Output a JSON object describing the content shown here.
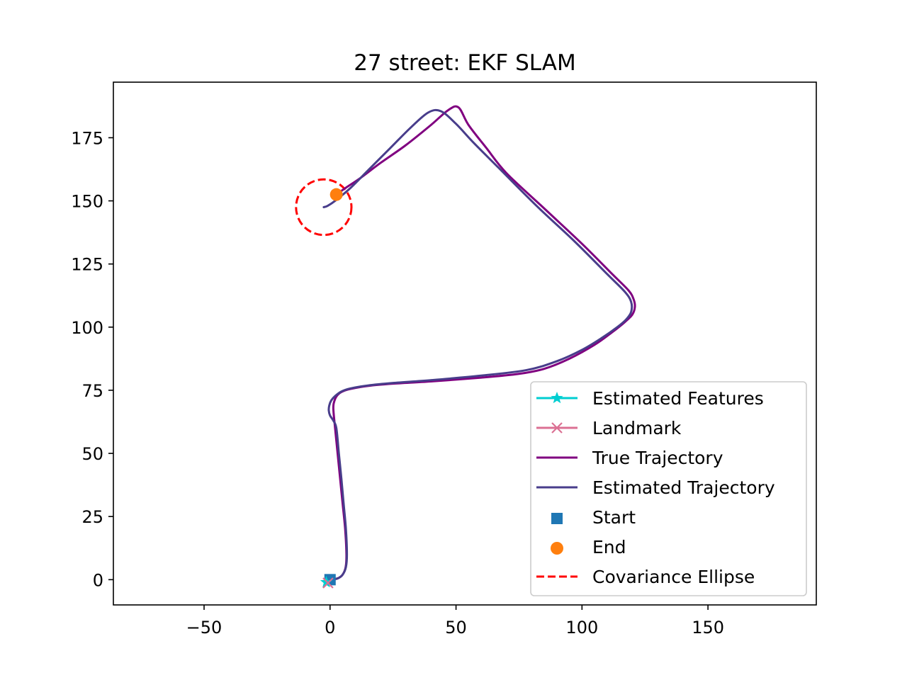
{
  "chart_data": {
    "type": "line",
    "title": "27 street: EKF SLAM",
    "xlabel": "",
    "ylabel": "",
    "xlim": [
      -86,
      193
    ],
    "ylim": [
      -10,
      197
    ],
    "x_ticks": [
      {
        "value": -50,
        "label": "−50"
      },
      {
        "value": 0,
        "label": "0"
      },
      {
        "value": 50,
        "label": "50"
      },
      {
        "value": 100,
        "label": "100"
      },
      {
        "value": 150,
        "label": "150"
      }
    ],
    "y_ticks": [
      {
        "value": 0,
        "label": "0"
      },
      {
        "value": 25,
        "label": "25"
      },
      {
        "value": 50,
        "label": "50"
      },
      {
        "value": 75,
        "label": "75"
      },
      {
        "value": 100,
        "label": "100"
      },
      {
        "value": 125,
        "label": "125"
      },
      {
        "value": 150,
        "label": "150"
      },
      {
        "value": 175,
        "label": "175"
      }
    ],
    "grid": false,
    "legend_position": "lower-right",
    "series": [
      {
        "name": "True Trajectory",
        "color": "#800080",
        "x": [
          0,
          3,
          5,
          6.2,
          6.5,
          6,
          5,
          4,
          3,
          2,
          1.5,
          1.3,
          1.5,
          2.5,
          4.5,
          8,
          15,
          25,
          40,
          60,
          75,
          85,
          95,
          105,
          112,
          117,
          120,
          121,
          120.5,
          118.5,
          112,
          100,
          85,
          70,
          62,
          55,
          51,
          47,
          40,
          30,
          20,
          12,
          6,
          2.5
        ],
        "y": [
          0,
          0.5,
          2,
          5,
          10,
          20,
          30,
          40,
          50,
          60,
          65,
          68,
          70,
          72.5,
          74.3,
          75.5,
          76.7,
          77.6,
          78.5,
          80,
          81.5,
          83.5,
          87.5,
          93,
          98,
          102,
          105,
          108,
          111,
          114.5,
          121,
          133,
          147,
          161,
          171,
          180,
          187,
          186,
          180,
          172,
          165,
          159,
          155,
          152.5
        ]
      },
      {
        "name": "Estimated Trajectory",
        "color": "#483d8b",
        "x": [
          0,
          3,
          5,
          6.3,
          6.7,
          6.3,
          5.4,
          4.5,
          3.5,
          2.5,
          1.3,
          0,
          -0.5,
          -0.3,
          0.5,
          2,
          4.5,
          8,
          15,
          25,
          40,
          60,
          78,
          90,
          100,
          108,
          114,
          117.5,
          119.5,
          119.5,
          117,
          110,
          97,
          82,
          67,
          57,
          50,
          44,
          39,
          32,
          24,
          15,
          8,
          2,
          -1,
          -2.5
        ],
        "y": [
          0,
          0.5,
          2,
          5,
          10,
          20,
          30,
          40,
          50,
          60,
          63,
          65,
          67,
          69,
          71,
          72.7,
          74.5,
          75.7,
          76.9,
          77.9,
          79,
          80.8,
          83,
          86.5,
          91,
          95.8,
          100,
          103,
          106,
          110,
          114,
          121,
          134,
          148,
          163,
          173,
          180.5,
          185.5,
          185,
          179,
          171,
          162,
          155,
          150,
          148,
          147.5
        ]
      }
    ],
    "markers": [
      {
        "name": "Start",
        "type": "square",
        "color": "#1f77b4",
        "x": 0,
        "y": 0
      },
      {
        "name": "End",
        "type": "circle",
        "color": "#ff7f0e",
        "x": 2.5,
        "y": 152.5
      },
      {
        "name": "Estimated Features",
        "type": "star",
        "color": "#00ced1",
        "x": -1.5,
        "y": -1
      },
      {
        "name": "Landmark",
        "type": "x",
        "color": "#db7093",
        "x": -0.8,
        "y": -1.3
      }
    ],
    "ellipse": {
      "name": "Covariance Ellipse",
      "color": "#ff0000",
      "cx": -2.5,
      "cy": 147.5,
      "rx": 11,
      "ry": 11
    },
    "legend": [
      {
        "label": "Estimated Features",
        "kind": "line-star",
        "color": "#00ced1"
      },
      {
        "label": "Landmark",
        "kind": "line-x",
        "color": "#db7093"
      },
      {
        "label": "True Trajectory",
        "kind": "line",
        "color": "#800080"
      },
      {
        "label": "Estimated Trajectory",
        "kind": "line",
        "color": "#483d8b"
      },
      {
        "label": "Start",
        "kind": "square",
        "color": "#1f77b4"
      },
      {
        "label": "End",
        "kind": "circle",
        "color": "#ff7f0e"
      },
      {
        "label": "Covariance Ellipse",
        "kind": "dashed",
        "color": "#ff0000"
      }
    ]
  }
}
